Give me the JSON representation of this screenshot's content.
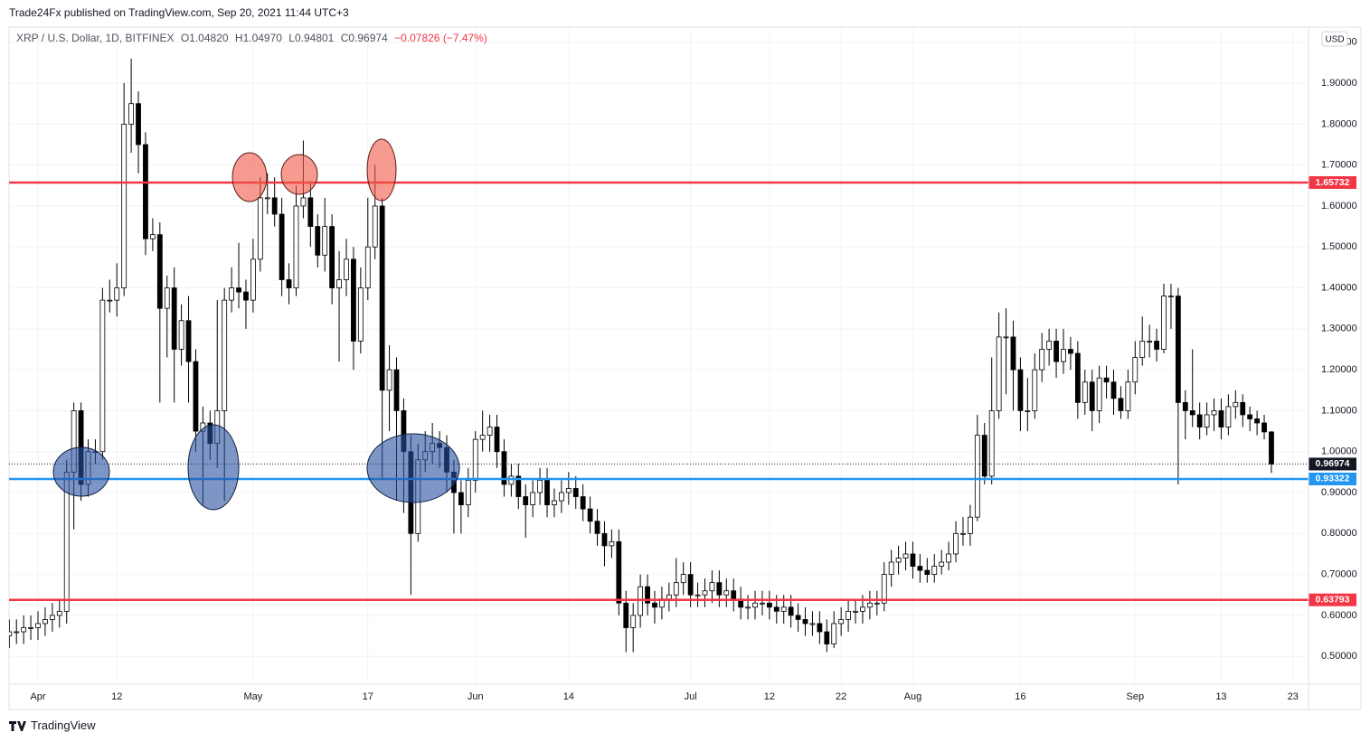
{
  "header": {
    "title": "Trade24Fx published on TradingView.com, Sep 20, 2021 11:44 UTC+3",
    "brand": "TradingView"
  },
  "chart_data": {
    "type": "candlestick",
    "title": "XRP / U.S. Dollar, 1D, BITFINEX",
    "readout": {
      "open": "O1.04820",
      "high": "H1.04970",
      "low": "L0.94801",
      "close": "C0.96974",
      "change": "−0.07826 (−7.47%)"
    },
    "currency": "USD",
    "up_color": "#ffffff",
    "down_color": "#000000",
    "edge_color": "#000000",
    "grid": true,
    "ylim": [
      0.432,
      2.037
    ],
    "yticks": [
      {
        "value": 0.5,
        "label": "0.50000"
      },
      {
        "value": 0.6,
        "label": "0.60000"
      },
      {
        "value": 0.7,
        "label": "0.70000"
      },
      {
        "value": 0.8,
        "label": "0.80000"
      },
      {
        "value": 0.9,
        "label": "0.90000"
      },
      {
        "value": 1.0,
        "label": "1.00000"
      },
      {
        "value": 1.1,
        "label": "1.10000"
      },
      {
        "value": 1.2,
        "label": "1.20000"
      },
      {
        "value": 1.3,
        "label": "1.30000"
      },
      {
        "value": 1.4,
        "label": "1.40000"
      },
      {
        "value": 1.5,
        "label": "1.50000"
      },
      {
        "value": 1.6,
        "label": "1.60000"
      },
      {
        "value": 1.7,
        "label": "1.70000"
      },
      {
        "value": 1.8,
        "label": "1.80000"
      },
      {
        "value": 1.9,
        "label": "1.90000"
      },
      {
        "value": 2.0,
        "label": "2.00000"
      }
    ],
    "levels": [
      {
        "value": 1.65732,
        "color": "#f23645"
      },
      {
        "value": 0.93322,
        "color": "#2196f3"
      },
      {
        "value": 0.63793,
        "color": "#f23645"
      }
    ],
    "categories": [
      null,
      null,
      null,
      null,
      "Apr",
      null,
      null,
      null,
      null,
      null,
      null,
      null,
      null,
      null,
      null,
      "12",
      null,
      null,
      null,
      null,
      null,
      null,
      null,
      null,
      null,
      null,
      null,
      null,
      null,
      null,
      null,
      null,
      null,
      null,
      "May",
      null,
      null,
      null,
      null,
      null,
      null,
      null,
      null,
      null,
      null,
      null,
      null,
      null,
      null,
      null,
      "17",
      null,
      null,
      null,
      null,
      null,
      null,
      null,
      null,
      null,
      null,
      null,
      null,
      null,
      null,
      "Jun",
      null,
      null,
      null,
      null,
      null,
      null,
      null,
      null,
      null,
      null,
      null,
      null,
      "14",
      null,
      null,
      null,
      null,
      null,
      null,
      null,
      null,
      null,
      null,
      null,
      null,
      null,
      null,
      null,
      null,
      "Jul",
      null,
      null,
      null,
      null,
      null,
      null,
      null,
      null,
      null,
      null,
      "12",
      null,
      null,
      null,
      null,
      null,
      null,
      null,
      null,
      null,
      "22",
      null,
      null,
      null,
      null,
      null,
      null,
      null,
      null,
      null,
      "Aug",
      null,
      null,
      null,
      null,
      null,
      null,
      null,
      null,
      null,
      null,
      null,
      null,
      null,
      null,
      "16",
      null,
      null,
      null,
      null,
      null,
      null,
      null,
      null,
      null,
      null,
      null,
      null,
      null,
      null,
      null,
      "Sep",
      null,
      null,
      null,
      null,
      null,
      null,
      null,
      null,
      null,
      null,
      null,
      "13",
      null,
      null,
      null,
      null,
      null,
      null,
      null,
      null,
      null,
      "23",
      null,
      null
    ],
    "open": [
      0.55,
      0.56,
      0.56,
      0.57,
      0.57,
      0.58,
      0.59,
      0.6,
      0.61,
      0.95,
      1.1,
      0.92,
      1.0,
      1.0,
      1.37,
      1.37,
      1.4,
      1.8,
      1.85,
      1.75,
      1.52,
      1.53,
      1.35,
      1.4,
      1.25,
      1.32,
      1.22,
      1.05,
      1.07,
      1.02,
      1.1,
      1.37,
      1.4,
      1.39,
      1.37,
      1.47,
      1.62,
      1.62,
      1.58,
      1.42,
      1.4,
      1.6,
      1.62,
      1.55,
      1.48,
      1.55,
      1.4,
      1.42,
      1.47,
      1.27,
      1.4,
      1.5,
      1.6,
      1.15,
      1.2,
      1.1,
      1.0,
      0.8,
      0.98,
      1.0,
      1.02,
      1.01,
      0.95,
      0.9,
      0.87,
      0.93,
      1.03,
      1.04,
      1.06,
      1.0,
      0.92,
      0.94,
      0.89,
      0.87,
      0.9,
      0.93,
      0.87,
      0.88,
      0.9,
      0.91,
      0.89,
      0.86,
      0.83,
      0.8,
      0.77,
      0.78,
      0.63,
      0.57,
      0.6,
      0.67,
      0.63,
      0.62,
      0.64,
      0.65,
      0.68,
      0.7,
      0.65,
      0.65,
      0.66,
      0.68,
      0.65,
      0.66,
      0.64,
      0.62,
      0.62,
      0.63,
      0.63,
      0.62,
      0.61,
      0.62,
      0.6,
      0.59,
      0.58,
      0.58,
      0.56,
      0.53,
      0.58,
      0.59,
      0.61,
      0.61,
      0.62,
      0.63,
      0.63,
      0.7,
      0.73,
      0.74,
      0.75,
      0.72,
      0.71,
      0.7,
      0.72,
      0.73,
      0.75,
      0.8,
      0.8,
      0.84,
      1.04,
      0.94,
      1.1,
      1.28,
      1.28,
      1.2,
      1.1,
      1.1,
      1.2,
      1.25,
      1.27,
      1.22,
      1.25,
      1.24,
      1.12,
      1.17,
      1.1,
      1.18,
      1.17,
      1.13,
      1.1,
      1.17,
      1.23,
      1.27,
      1.27,
      1.25,
      1.38,
      1.38,
      1.12,
      1.1,
      1.09,
      1.06,
      1.09,
      1.1,
      1.06,
      1.11,
      1.12,
      1.09,
      1.08,
      1.07,
      1.0482,
      null,
      null,
      null,
      null,
      null
    ],
    "high": [
      0.59,
      0.59,
      0.6,
      0.6,
      0.61,
      0.62,
      0.63,
      0.64,
      0.98,
      1.12,
      1.12,
      1.03,
      1.03,
      1.4,
      1.42,
      1.46,
      1.9,
      1.96,
      1.88,
      1.78,
      1.57,
      1.56,
      1.43,
      1.45,
      1.36,
      1.38,
      1.25,
      1.11,
      1.1,
      1.37,
      1.4,
      1.45,
      1.51,
      1.42,
      1.52,
      1.67,
      1.68,
      1.67,
      1.62,
      1.46,
      1.65,
      1.76,
      1.66,
      1.58,
      1.62,
      1.58,
      1.49,
      1.52,
      1.5,
      1.45,
      1.62,
      1.7,
      1.62,
      1.26,
      1.23,
      1.13,
      1.04,
      1.02,
      1.05,
      1.07,
      1.05,
      1.04,
      0.98,
      0.93,
      0.96,
      1.05,
      1.1,
      1.09,
      1.09,
      1.03,
      0.97,
      0.97,
      0.92,
      0.93,
      0.96,
      0.96,
      0.91,
      0.93,
      0.95,
      0.94,
      0.92,
      0.89,
      0.86,
      0.83,
      0.81,
      0.81,
      0.66,
      0.63,
      0.7,
      0.7,
      0.66,
      0.67,
      0.68,
      0.74,
      0.73,
      0.73,
      0.68,
      0.69,
      0.71,
      0.71,
      0.69,
      0.69,
      0.67,
      0.65,
      0.66,
      0.66,
      0.66,
      0.65,
      0.65,
      0.65,
      0.63,
      0.62,
      0.61,
      0.61,
      0.59,
      0.61,
      0.62,
      0.64,
      0.64,
      0.65,
      0.66,
      0.66,
      0.73,
      0.76,
      0.77,
      0.78,
      0.78,
      0.75,
      0.74,
      0.75,
      0.76,
      0.78,
      0.83,
      0.84,
      0.87,
      1.09,
      1.07,
      1.23,
      1.34,
      1.35,
      1.32,
      1.23,
      1.18,
      1.24,
      1.29,
      1.3,
      1.3,
      1.3,
      1.28,
      1.27,
      1.2,
      1.2,
      1.21,
      1.21,
      1.2,
      1.16,
      1.2,
      1.27,
      1.33,
      1.31,
      1.3,
      1.41,
      1.41,
      1.4,
      1.15,
      1.25,
      1.12,
      1.12,
      1.13,
      1.13,
      1.14,
      1.15,
      1.14,
      1.11,
      1.1,
      1.09,
      1.0497,
      null,
      null,
      null,
      null,
      null
    ],
    "low": [
      0.52,
      0.53,
      0.53,
      0.54,
      0.54,
      0.55,
      0.56,
      0.57,
      0.58,
      0.81,
      0.88,
      0.89,
      0.97,
      0.98,
      1.34,
      1.33,
      1.38,
      1.73,
      1.68,
      1.48,
      1.49,
      1.12,
      1.23,
      1.12,
      1.21,
      1.12,
      1.0,
      0.87,
      0.98,
      0.96,
      0.88,
      1.34,
      1.35,
      1.3,
      1.34,
      1.44,
      1.58,
      1.55,
      1.38,
      1.36,
      1.38,
      1.57,
      1.5,
      1.45,
      1.44,
      1.36,
      1.22,
      1.38,
      1.2,
      1.24,
      1.37,
      1.47,
      0.93,
      1.05,
      0.88,
      0.85,
      0.65,
      0.78,
      0.95,
      0.97,
      0.96,
      0.9,
      0.8,
      0.8,
      0.84,
      0.9,
      1.0,
      1.0,
      0.96,
      0.89,
      0.89,
      0.86,
      0.79,
      0.84,
      0.87,
      0.84,
      0.84,
      0.85,
      0.87,
      0.86,
      0.83,
      0.8,
      0.77,
      0.72,
      0.74,
      0.6,
      0.51,
      0.51,
      0.57,
      0.6,
      0.58,
      0.59,
      0.61,
      0.62,
      0.65,
      0.62,
      0.62,
      0.62,
      0.63,
      0.62,
      0.62,
      0.61,
      0.59,
      0.59,
      0.59,
      0.6,
      0.59,
      0.58,
      0.58,
      0.57,
      0.56,
      0.55,
      0.55,
      0.53,
      0.51,
      0.52,
      0.55,
      0.56,
      0.58,
      0.58,
      0.59,
      0.6,
      0.61,
      0.67,
      0.7,
      0.71,
      0.69,
      0.68,
      0.68,
      0.68,
      0.7,
      0.71,
      0.73,
      0.77,
      0.77,
      0.83,
      0.92,
      0.92,
      1.08,
      1.14,
      1.1,
      1.05,
      1.05,
      1.08,
      1.17,
      1.21,
      1.18,
      1.19,
      1.2,
      1.08,
      1.09,
      1.05,
      1.07,
      1.13,
      1.09,
      1.08,
      1.08,
      1.14,
      1.21,
      1.23,
      1.22,
      1.24,
      1.3,
      0.92,
      1.03,
      1.06,
      1.03,
      1.04,
      1.05,
      1.03,
      1.04,
      1.08,
      1.06,
      1.05,
      1.04,
      1.03,
      0.94801,
      null,
      null,
      null,
      null,
      null
    ],
    "close": [
      0.56,
      0.56,
      0.57,
      0.57,
      0.58,
      0.59,
      0.6,
      0.61,
      0.95,
      1.1,
      0.92,
      1.0,
      1.0,
      1.37,
      1.37,
      1.4,
      1.8,
      1.85,
      1.75,
      1.52,
      1.53,
      1.35,
      1.4,
      1.25,
      1.32,
      1.22,
      1.05,
      1.07,
      1.02,
      1.1,
      1.37,
      1.4,
      1.39,
      1.37,
      1.47,
      1.62,
      1.62,
      1.58,
      1.42,
      1.4,
      1.6,
      1.62,
      1.55,
      1.48,
      1.55,
      1.4,
      1.42,
      1.47,
      1.27,
      1.4,
      1.5,
      1.6,
      1.15,
      1.2,
      1.1,
      1.0,
      0.8,
      0.98,
      1.0,
      1.02,
      1.01,
      0.95,
      0.9,
      0.87,
      0.93,
      1.03,
      1.04,
      1.06,
      1.0,
      0.92,
      0.94,
      0.89,
      0.87,
      0.9,
      0.93,
      0.87,
      0.88,
      0.9,
      0.91,
      0.89,
      0.86,
      0.83,
      0.8,
      0.77,
      0.78,
      0.63,
      0.57,
      0.6,
      0.67,
      0.63,
      0.62,
      0.64,
      0.65,
      0.68,
      0.7,
      0.65,
      0.65,
      0.66,
      0.68,
      0.65,
      0.66,
      0.64,
      0.62,
      0.62,
      0.63,
      0.63,
      0.62,
      0.61,
      0.62,
      0.6,
      0.59,
      0.58,
      0.58,
      0.56,
      0.53,
      0.58,
      0.59,
      0.61,
      0.61,
      0.62,
      0.63,
      0.63,
      0.7,
      0.73,
      0.74,
      0.75,
      0.72,
      0.71,
      0.7,
      0.72,
      0.73,
      0.75,
      0.8,
      0.8,
      0.84,
      1.04,
      0.94,
      1.1,
      1.28,
      1.28,
      1.2,
      1.1,
      1.1,
      1.2,
      1.25,
      1.27,
      1.22,
      1.25,
      1.24,
      1.12,
      1.17,
      1.1,
      1.18,
      1.17,
      1.13,
      1.1,
      1.17,
      1.23,
      1.27,
      1.27,
      1.25,
      1.38,
      1.38,
      1.12,
      1.1,
      1.09,
      1.06,
      1.09,
      1.1,
      1.06,
      1.11,
      1.12,
      1.09,
      1.08,
      1.07,
      1.0482,
      0.96974,
      null,
      null,
      null,
      null,
      null
    ]
  }
}
